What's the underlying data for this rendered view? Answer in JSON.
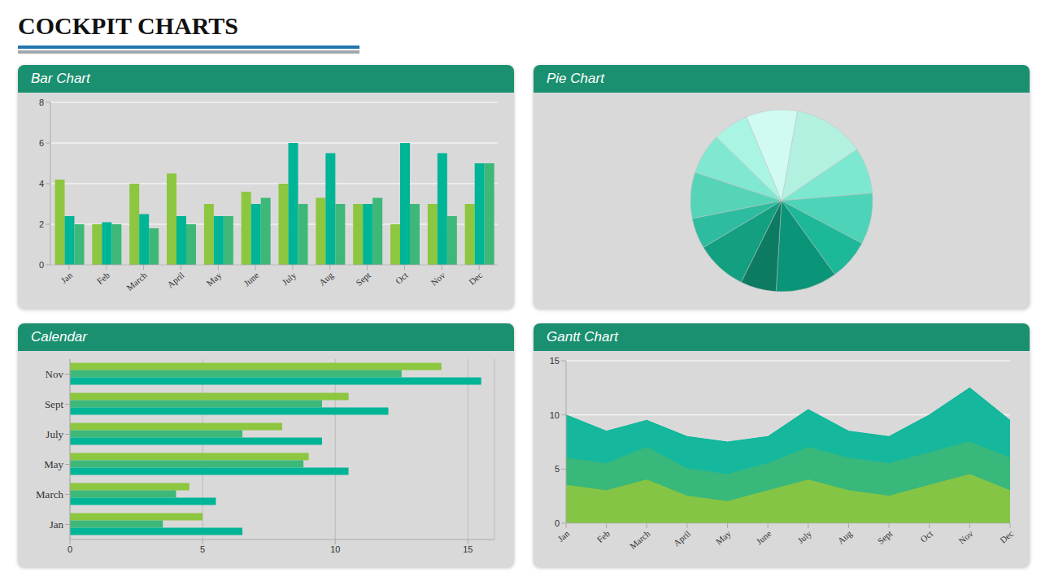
{
  "title": "COCKPIT CHARTS",
  "chart_data": [
    {
      "type": "bar",
      "title": "Bar Chart",
      "categories": [
        "Jan",
        "Feb",
        "March",
        "April",
        "May",
        "June",
        "July",
        "Aug",
        "Sept",
        "Oct",
        "Nov",
        "Dec"
      ],
      "series": [
        {
          "color": "#8dc63f",
          "values": [
            4.2,
            2.0,
            4.0,
            4.5,
            3.0,
            3.6,
            4.0,
            3.3,
            3.0,
            2.0,
            3.0,
            3.0
          ]
        },
        {
          "color": "#00b496",
          "values": [
            2.4,
            2.1,
            2.5,
            2.4,
            2.4,
            3.0,
            6.0,
            5.5,
            3.0,
            6.0,
            5.5,
            5.0
          ]
        },
        {
          "color": "#3db878",
          "values": [
            2.0,
            2.0,
            1.8,
            2.0,
            2.4,
            3.3,
            3.0,
            3.0,
            3.3,
            3.0,
            2.4,
            5.0
          ]
        }
      ],
      "ylim": [
        0,
        8
      ],
      "yticks": [
        0,
        2,
        4,
        6,
        8
      ],
      "grid": true
    },
    {
      "type": "pie",
      "title": "Pie Chart",
      "values": [
        14,
        9,
        10,
        8,
        12,
        7,
        10,
        6,
        9,
        8,
        7,
        10
      ],
      "colors": [
        "#b2f0e0",
        "#7de8d0",
        "#4dd4b8",
        "#1db898",
        "#0a9478",
        "#0d7a62",
        "#12a080",
        "#2ebca0",
        "#56d4b8",
        "#80e8d0",
        "#aaf4e4",
        "#d0faf2"
      ]
    },
    {
      "type": "bar",
      "title": "Calendar",
      "orientation": "horizontal",
      "categories": [
        "Jan",
        "March",
        "May",
        "July",
        "Sept",
        "Nov"
      ],
      "series": [
        {
          "color": "#8dc63f",
          "values": [
            5.0,
            4.5,
            9.0,
            8.0,
            10.5,
            14.0
          ]
        },
        {
          "color": "#3db878",
          "values": [
            3.5,
            4.0,
            8.8,
            6.5,
            9.5,
            12.5
          ]
        },
        {
          "color": "#00b496",
          "values": [
            6.5,
            5.5,
            10.5,
            9.5,
            12.0,
            15.5
          ]
        }
      ],
      "xlim": [
        0,
        16
      ],
      "xticks": [
        0,
        5,
        10,
        15
      ],
      "grid": true
    },
    {
      "type": "area",
      "title": "Gantt Chart",
      "categories": [
        "Jan",
        "Feb",
        "March",
        "April",
        "May",
        "June",
        "July",
        "Aug",
        "Sept",
        "Oct",
        "Nov",
        "Dec"
      ],
      "series": [
        {
          "color": "#00b496",
          "values": [
            10.0,
            8.5,
            9.5,
            8.0,
            7.5,
            8.0,
            10.5,
            8.5,
            8.0,
            10.0,
            12.5,
            9.5
          ]
        },
        {
          "color": "#3db878",
          "values": [
            6.0,
            5.5,
            7.0,
            5.0,
            4.5,
            5.5,
            7.0,
            6.0,
            5.5,
            6.5,
            7.5,
            6.0
          ]
        },
        {
          "color": "#8dc63f",
          "values": [
            3.5,
            3.0,
            4.0,
            2.5,
            2.0,
            3.0,
            4.0,
            3.0,
            2.5,
            3.5,
            4.5,
            3.0
          ]
        }
      ],
      "ylim": [
        0,
        15
      ],
      "yticks": [
        0,
        5,
        10,
        15
      ],
      "grid": true
    }
  ]
}
